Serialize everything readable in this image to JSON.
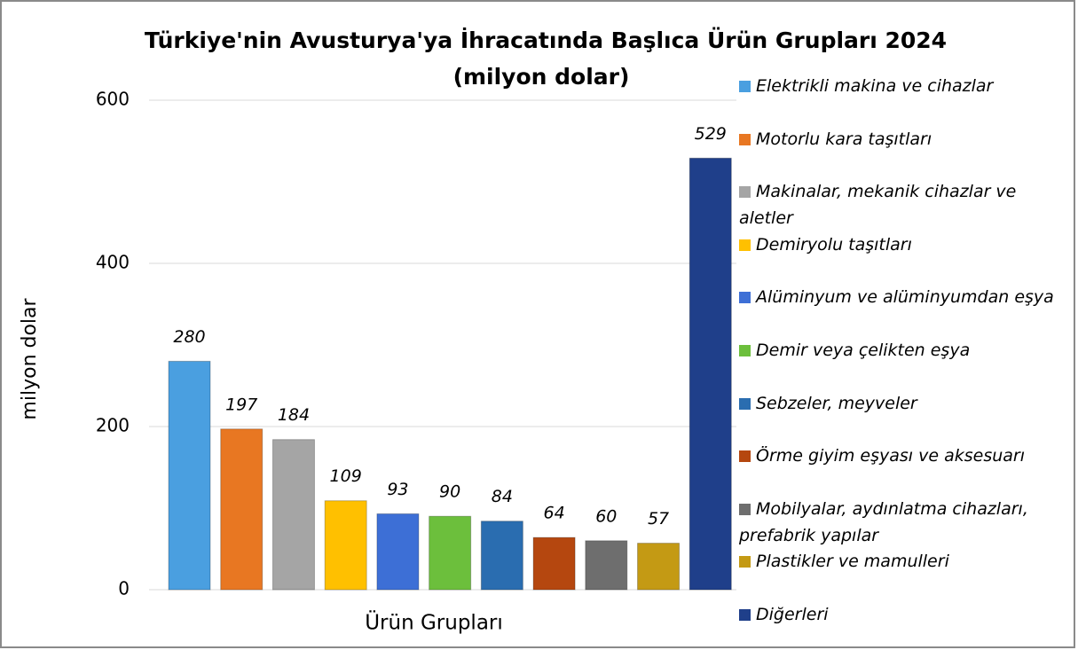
{
  "chart_data": {
    "type": "bar",
    "title": [
      "Türkiye'nin Avusturya'ya İhracatında Başlıca Ürün Grupları 2024",
      "(milyon dolar)"
    ],
    "y_label": "milyon dolar",
    "categories": [
      "Ürün Grupları"
    ],
    "ylim": [
      0,
      600
    ],
    "yticks": [
      0,
      200,
      400,
      600
    ],
    "grid": true,
    "legend": "right",
    "series": [
      {
        "name": "Elektrikli makina ve cihazlar",
        "color": "#4a9fe0",
        "values": [
          280
        ]
      },
      {
        "name": "Motorlu kara taşıtları",
        "color": "#e87722",
        "values": [
          197
        ]
      },
      {
        "name": "Makinalar, mekanik cihazlar ve aletler",
        "color": "#a5a5a5",
        "values": [
          184
        ]
      },
      {
        "name": "Demiryolu taşıtları",
        "color": "#ffc000",
        "values": [
          109
        ]
      },
      {
        "name": "Alüminyum ve alüminyumdan eşya",
        "color": "#3d6fd6",
        "values": [
          93
        ]
      },
      {
        "name": "Demir veya çelikten eşya",
        "color": "#6cbf3c",
        "values": [
          90
        ]
      },
      {
        "name": "Sebzeler, meyveler",
        "color": "#2a6db0",
        "values": [
          84
        ]
      },
      {
        "name": "Örme giyim eşyası ve aksesuarı",
        "color": "#b5470f",
        "values": [
          64
        ]
      },
      {
        "name": "Mobilyalar, aydınlatma cihazları, prefabrik yapılar",
        "color": "#6e6e6e",
        "values": [
          60
        ]
      },
      {
        "name": "Plastikler ve mamulleri",
        "color": "#c49a14",
        "values": [
          57
        ]
      },
      {
        "name": "Diğerleri",
        "color": "#1f3f8a",
        "values": [
          529
        ]
      }
    ]
  }
}
